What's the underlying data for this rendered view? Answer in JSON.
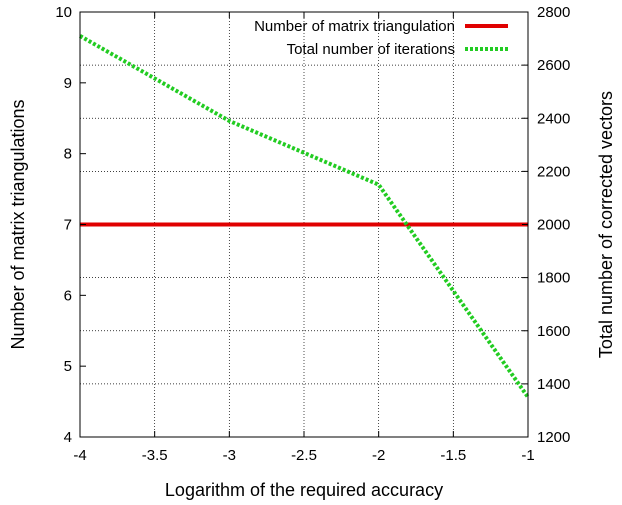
{
  "chart_data": {
    "type": "line",
    "title": "",
    "xlabel": "Logarithm of the required accuracy",
    "ylabel": "Number of matrix triangulations",
    "y2label": "Total number of corrected vectors",
    "xlim": [
      -4,
      -1
    ],
    "ylim": [
      4,
      10
    ],
    "y2lim": [
      1200,
      2800
    ],
    "xticks": [
      "-4",
      "-3.5",
      "-3",
      "-2.5",
      "-2",
      "-1.5",
      "-1"
    ],
    "yticks": [
      "4",
      "5",
      "6",
      "7",
      "8",
      "9",
      "10"
    ],
    "y2ticks": [
      "1200",
      "1400",
      "1600",
      "1800",
      "2000",
      "2200",
      "2400",
      "2600",
      "2800"
    ],
    "grid": true,
    "legend_position": "top-right",
    "series": [
      {
        "name": "Number of matrix triangulation",
        "axis": "left",
        "color": "#e00000",
        "style": "solid",
        "x": [
          -4,
          -3,
          -2,
          -1
        ],
        "y": [
          7,
          7,
          7,
          7
        ]
      },
      {
        "name": "Total number of iterations",
        "axis": "right",
        "color": "#22cc22",
        "style": "dotted",
        "x": [
          -4,
          -3,
          -2,
          -1
        ],
        "y": [
          2710,
          2390,
          2150,
          1350
        ]
      }
    ]
  }
}
